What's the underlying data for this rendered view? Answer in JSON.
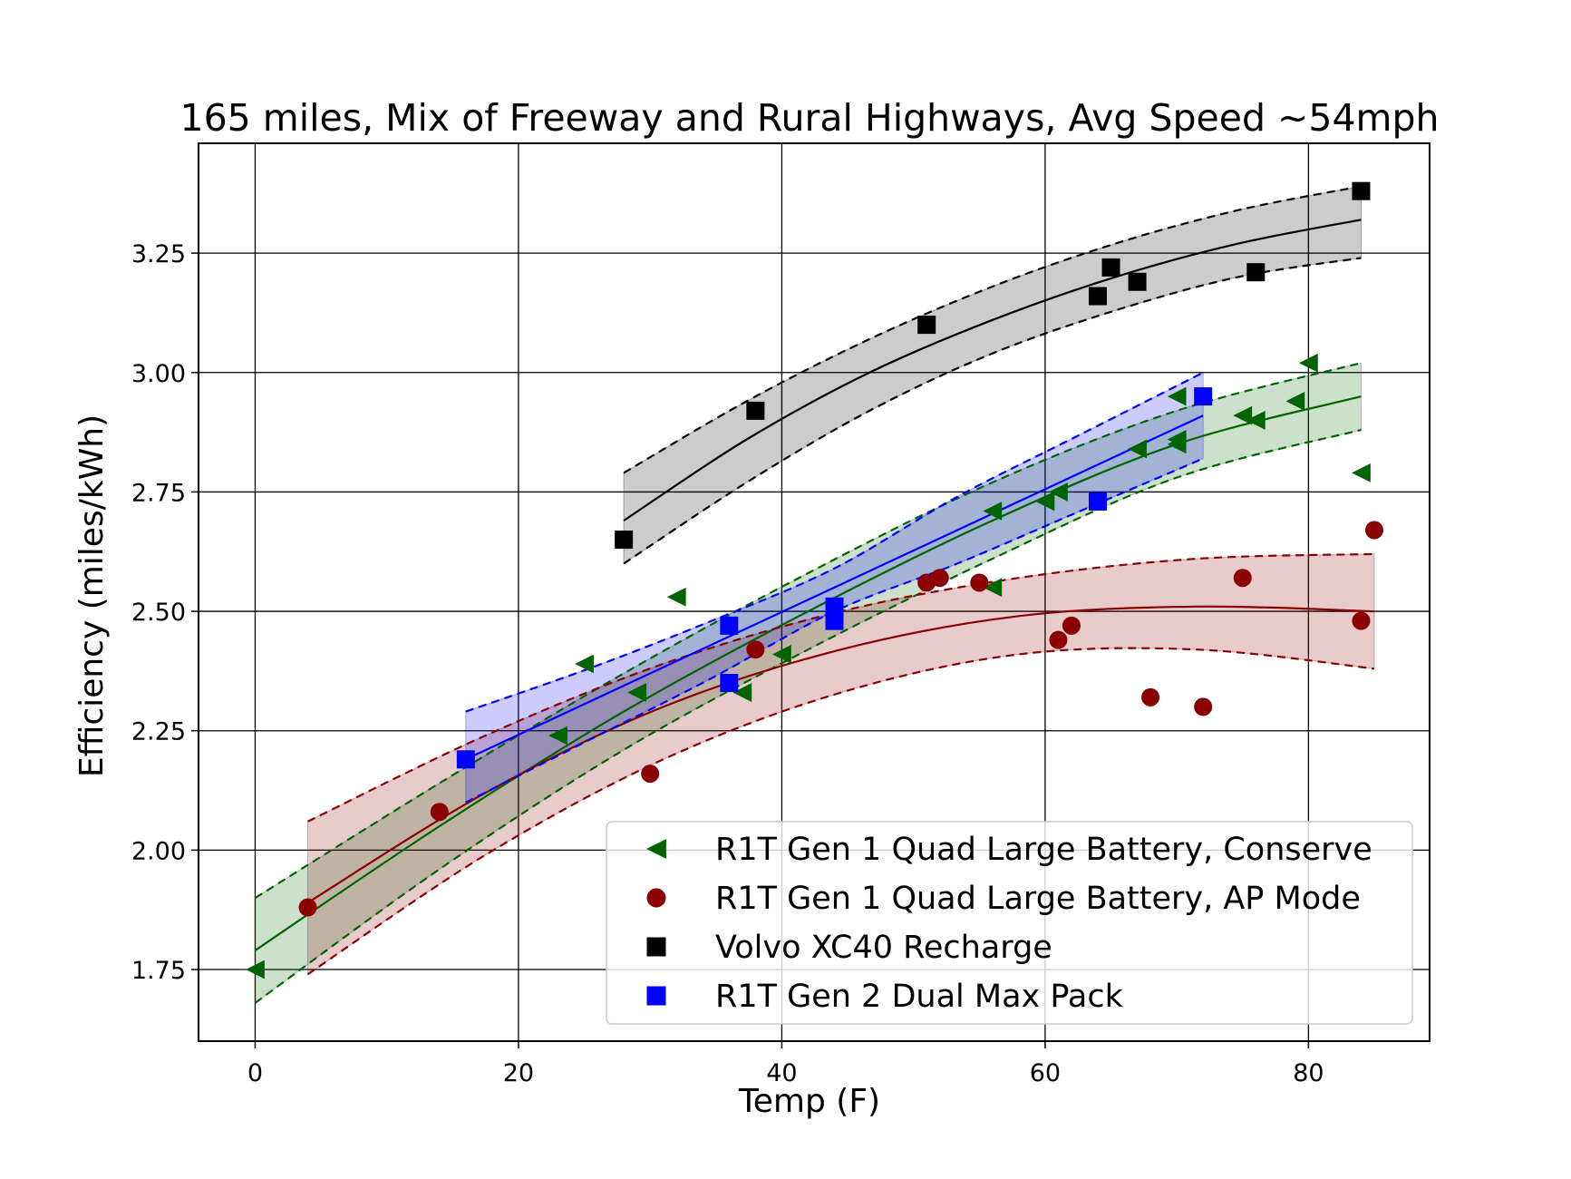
{
  "chart_data": {
    "type": "scatter",
    "title": "165 miles, Mix of Freeway and Rural Highways, Avg Speed ~54mph",
    "xlabel": "Temp (F)",
    "ylabel": "Efficiency (miles/kWh)",
    "xlim": [
      -4.3,
      89.2
    ],
    "ylim": [
      1.6,
      3.48
    ],
    "xticks": [
      0,
      20,
      40,
      60,
      80
    ],
    "yticks": [
      1.75,
      2.0,
      2.25,
      2.5,
      2.75,
      3.0,
      3.25
    ],
    "xtick_labels": [
      "0",
      "20",
      "40",
      "60",
      "80"
    ],
    "ytick_labels": [
      "1.75",
      "2.00",
      "2.25",
      "2.50",
      "2.75",
      "3.00",
      "3.25"
    ],
    "grid": true,
    "legend_position": "lower right",
    "series": [
      {
        "name": "R1T Gen 1 Quad Large Battery, Conserve",
        "marker": "triangle-left",
        "color": "#006400",
        "points": [
          [
            0,
            1.75
          ],
          [
            23,
            2.24
          ],
          [
            25,
            2.39
          ],
          [
            29,
            2.33
          ],
          [
            32,
            2.53
          ],
          [
            37,
            2.33
          ],
          [
            40,
            2.41
          ],
          [
            56,
            2.71
          ],
          [
            56,
            2.55
          ],
          [
            60,
            2.73
          ],
          [
            61,
            2.75
          ],
          [
            67,
            2.84
          ],
          [
            70,
            2.95
          ],
          [
            70,
            2.85
          ],
          [
            70,
            2.86
          ],
          [
            75,
            2.91
          ],
          [
            76,
            2.9
          ],
          [
            79,
            2.94
          ],
          [
            80,
            3.02
          ],
          [
            84,
            2.79
          ]
        ],
        "fit_x": [
          0,
          84
        ],
        "fit": [
          1.79,
          2.05,
          2.29,
          2.5,
          2.69,
          2.85,
          2.95
        ],
        "band_upper": [
          1.9,
          2.14,
          2.37,
          2.58,
          2.77,
          2.92,
          3.02
        ],
        "band_lower": [
          1.68,
          1.96,
          2.21,
          2.42,
          2.61,
          2.78,
          2.88
        ]
      },
      {
        "name": "R1T Gen 1 Quad Large Battery, AP Mode",
        "marker": "circle",
        "color": "#8b0000",
        "points": [
          [
            4,
            1.88
          ],
          [
            14,
            2.08
          ],
          [
            30,
            2.16
          ],
          [
            38,
            2.42
          ],
          [
            51,
            2.56
          ],
          [
            52,
            2.57
          ],
          [
            55,
            2.56
          ],
          [
            61,
            2.44
          ],
          [
            62,
            2.47
          ],
          [
            68,
            2.32
          ],
          [
            72,
            2.3
          ],
          [
            75,
            2.57
          ],
          [
            84,
            2.48
          ],
          [
            85,
            2.67
          ]
        ],
        "fit_x": [
          4,
          85
        ],
        "fit": [
          1.89,
          2.12,
          2.3,
          2.42,
          2.49,
          2.51,
          2.5
        ],
        "band_upper": [
          2.06,
          2.24,
          2.39,
          2.5,
          2.57,
          2.61,
          2.62
        ],
        "band_lower": [
          1.74,
          1.99,
          2.19,
          2.33,
          2.41,
          2.42,
          2.38
        ]
      },
      {
        "name": "Volvo XC40 Recharge",
        "marker": "square",
        "color": "#000000",
        "points": [
          [
            28,
            2.65
          ],
          [
            38,
            2.92
          ],
          [
            51,
            3.1
          ],
          [
            64,
            3.16
          ],
          [
            65,
            3.22
          ],
          [
            67,
            3.19
          ],
          [
            76,
            3.21
          ],
          [
            84,
            3.38
          ]
        ],
        "fit_x": [
          28,
          84
        ],
        "fit": [
          2.69,
          2.86,
          3.0,
          3.11,
          3.2,
          3.27,
          3.32
        ],
        "band_upper": [
          2.79,
          2.94,
          3.07,
          3.18,
          3.27,
          3.34,
          3.39
        ],
        "band_lower": [
          2.6,
          2.77,
          2.92,
          3.04,
          3.13,
          3.2,
          3.24
        ]
      },
      {
        "name": "R1T Gen 2 Dual Max Pack",
        "marker": "square",
        "color": "#0000ff",
        "points": [
          [
            16,
            2.19
          ],
          [
            36,
            2.47
          ],
          [
            36,
            2.35
          ],
          [
            44,
            2.49
          ],
          [
            44,
            2.51
          ],
          [
            44,
            2.48
          ],
          [
            64,
            2.73
          ],
          [
            72,
            2.95
          ]
        ],
        "fit_x": [
          16,
          72
        ],
        "fit": [
          2.19,
          2.31,
          2.43,
          2.55,
          2.67,
          2.79,
          2.91
        ],
        "band_upper": [
          2.29,
          2.38,
          2.48,
          2.59,
          2.74,
          2.87,
          3.0
        ],
        "band_lower": [
          2.1,
          2.23,
          2.36,
          2.5,
          2.6,
          2.71,
          2.82
        ]
      }
    ]
  }
}
